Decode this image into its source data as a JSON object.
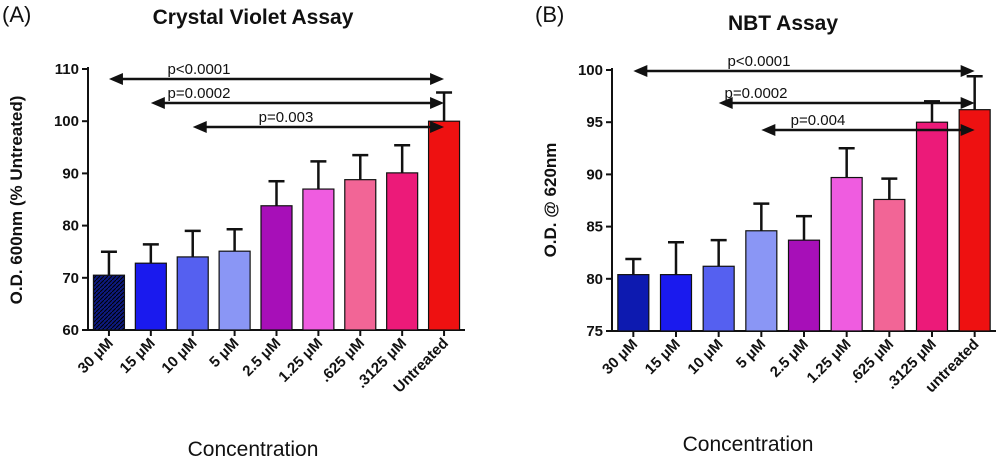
{
  "chart_data": [
    {
      "type": "bar",
      "panel_label": "(A)",
      "title": "Crystal Violet Assay",
      "xlabel": "Concentration",
      "ylabel": "O.D. 600nm (% Untreated)",
      "ylim": [
        60,
        110
      ],
      "yticks": [
        60,
        70,
        80,
        90,
        100,
        110
      ],
      "categories": [
        "30 μM",
        "15 μM",
        "10 μM",
        "5 μM",
        "2.5 μM",
        "1.25 μM",
        ".625 μM",
        ".3125 μM",
        "Untreated"
      ],
      "values": [
        70.5,
        72.8,
        74.0,
        75.1,
        83.8,
        87.0,
        88.8,
        90.1,
        100.0
      ],
      "errors": [
        4.5,
        3.6,
        5.0,
        4.2,
        4.7,
        5.3,
        4.7,
        5.3,
        5.5
      ],
      "colors": [
        "#0d1a80",
        "#1a1aee",
        "#5560f0",
        "#8a96f5",
        "#a70fb8",
        "#ef5ce0",
        "#f26596",
        "#ec1a79",
        "#ee1111"
      ],
      "first_bar_hatched": true,
      "grid": false,
      "comparisons": [
        {
          "label": "p<0.0001",
          "from_index": 0,
          "to_index": 8
        },
        {
          "label": "p=0.0002",
          "from_index": 1,
          "to_index": 8
        },
        {
          "label": "p=0.003",
          "from_index": 2,
          "to_index": 8
        }
      ]
    },
    {
      "type": "bar",
      "panel_label": "(B)",
      "title": "NBT Assay",
      "xlabel": "Concentration",
      "ylabel": "O.D. @ 620nm",
      "ylim": [
        75,
        100
      ],
      "yticks": [
        75,
        80,
        85,
        90,
        95,
        100
      ],
      "categories": [
        "30 μM",
        "15 μM",
        "10 μM",
        "5 μM",
        "2.5 μM",
        "1.25 μM",
        ".625 μM",
        ".3125 μM",
        "untreated"
      ],
      "values": [
        80.4,
        80.4,
        81.2,
        84.6,
        83.7,
        89.7,
        87.6,
        95.0,
        96.2
      ],
      "errors": [
        1.5,
        3.1,
        2.5,
        2.6,
        2.3,
        2.8,
        2.0,
        2.0,
        3.2
      ],
      "colors": [
        "#0d1ab0",
        "#1a1aee",
        "#5560f0",
        "#8a96f5",
        "#a70fb8",
        "#ef5ce0",
        "#f26596",
        "#ec1a79",
        "#ee1111"
      ],
      "first_bar_hatched": false,
      "grid": false,
      "comparisons": [
        {
          "label": "p<0.0001",
          "from_index": 0,
          "to_index": 8
        },
        {
          "label": "p=0.0002",
          "from_index": 2,
          "to_index": 8
        },
        {
          "label": "p=0.004",
          "from_index": 3,
          "to_index": 8
        }
      ]
    }
  ]
}
